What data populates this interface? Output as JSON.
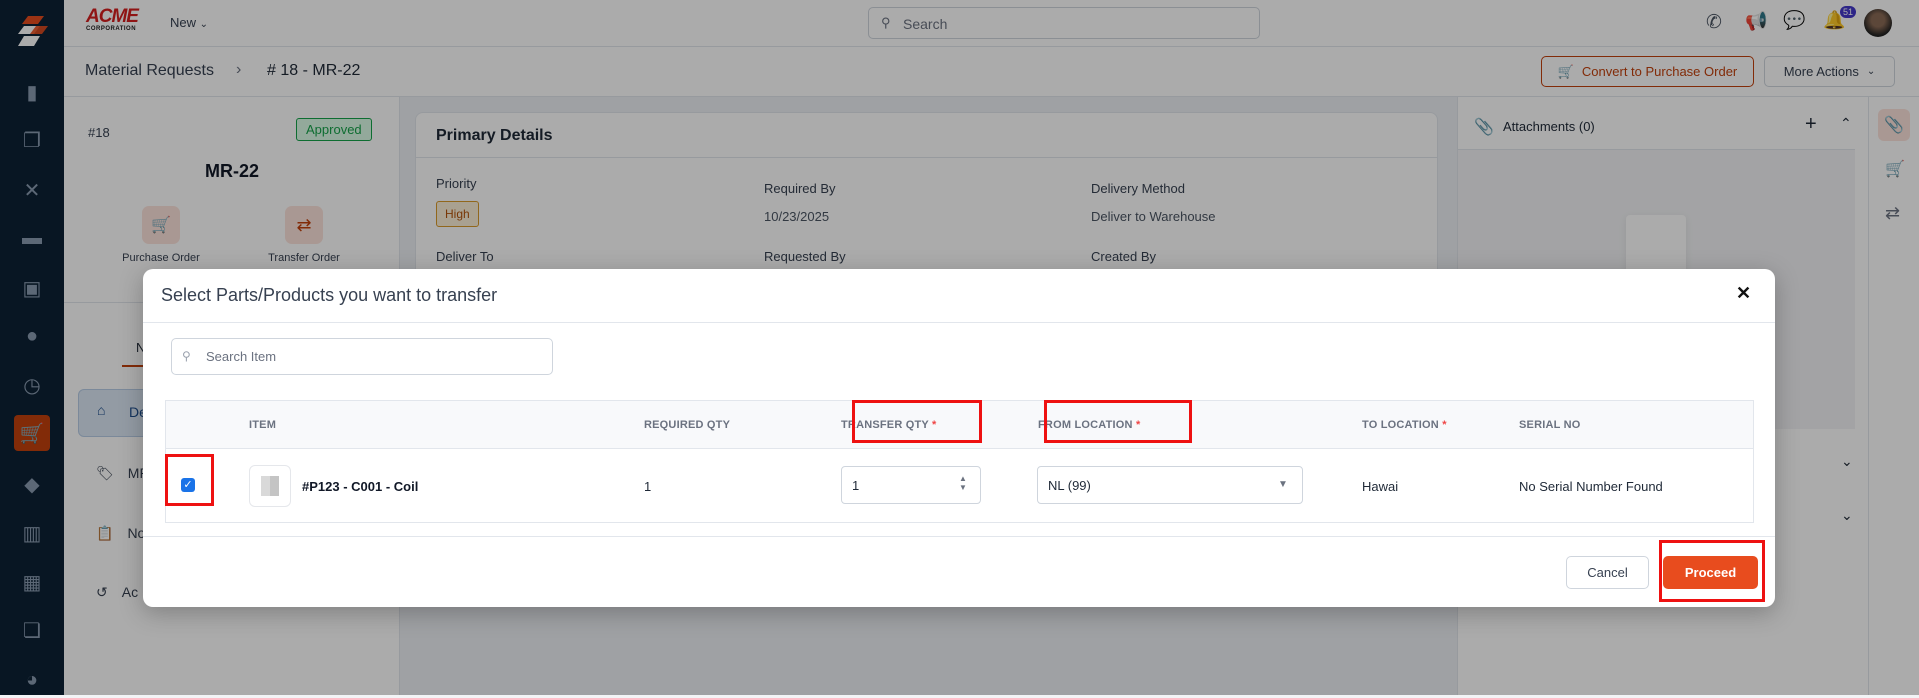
{
  "app": {
    "logo_text": "ACME CORPORATION",
    "new_label": "New",
    "search_placeholder": "Search",
    "notification_count": "51"
  },
  "sidebar": {
    "items": [
      "analytics",
      "tasks",
      "tools",
      "briefcase",
      "calendar",
      "users",
      "clock",
      "cart",
      "tag",
      "map",
      "calculator",
      "documents",
      "pie-chart"
    ],
    "active": "cart"
  },
  "breadcrumb": {
    "parent": "Material Requests",
    "current": "# 18 - MR-22"
  },
  "header_actions": {
    "convert": "Convert to Purchase Order",
    "more": "More Actions"
  },
  "record": {
    "number": "#18",
    "status": "Approved",
    "title": "MR-22",
    "actions": [
      "Purchase Order",
      "Transfer Order"
    ]
  },
  "left_nav": {
    "tab": "Nav",
    "items": [
      "De",
      "MR",
      "No",
      "Ac"
    ]
  },
  "primary_details": {
    "title": "Primary Details",
    "priority_label": "Priority",
    "priority": "High",
    "required_by_label": "Required By",
    "required_by": "10/23/2025",
    "delivery_method_label": "Delivery Method",
    "delivery_method": "Deliver to Warehouse",
    "deliver_to_label": "Deliver To",
    "requested_by_label": "Requested By",
    "created_by_label": "Created By"
  },
  "attachments": {
    "title": "Attachments (0)"
  },
  "modal": {
    "title": "Select Parts/Products you want to transfer",
    "search_placeholder": "Search Item",
    "columns": {
      "item": "ITEM",
      "required_qty": "REQUIRED QTY",
      "transfer_qty": "TRANSFER QTY",
      "from_location": "FROM LOCATION",
      "to_location": "TO LOCATION",
      "serial_no": "SERIAL NO",
      "required_mark": "*"
    },
    "rows": [
      {
        "checked": true,
        "item": "#P123 - C001 - Coil",
        "required_qty": "1",
        "transfer_qty": "1",
        "from_location": "NL (99)",
        "to_location": "Hawai",
        "serial_no": "No Serial Number Found"
      }
    ],
    "cancel": "Cancel",
    "proceed": "Proceed"
  },
  "colors": {
    "accent": "#e84c1e",
    "sidebar": "#0d2235",
    "approved": "#16a34a",
    "highlight": "#ee1111"
  }
}
